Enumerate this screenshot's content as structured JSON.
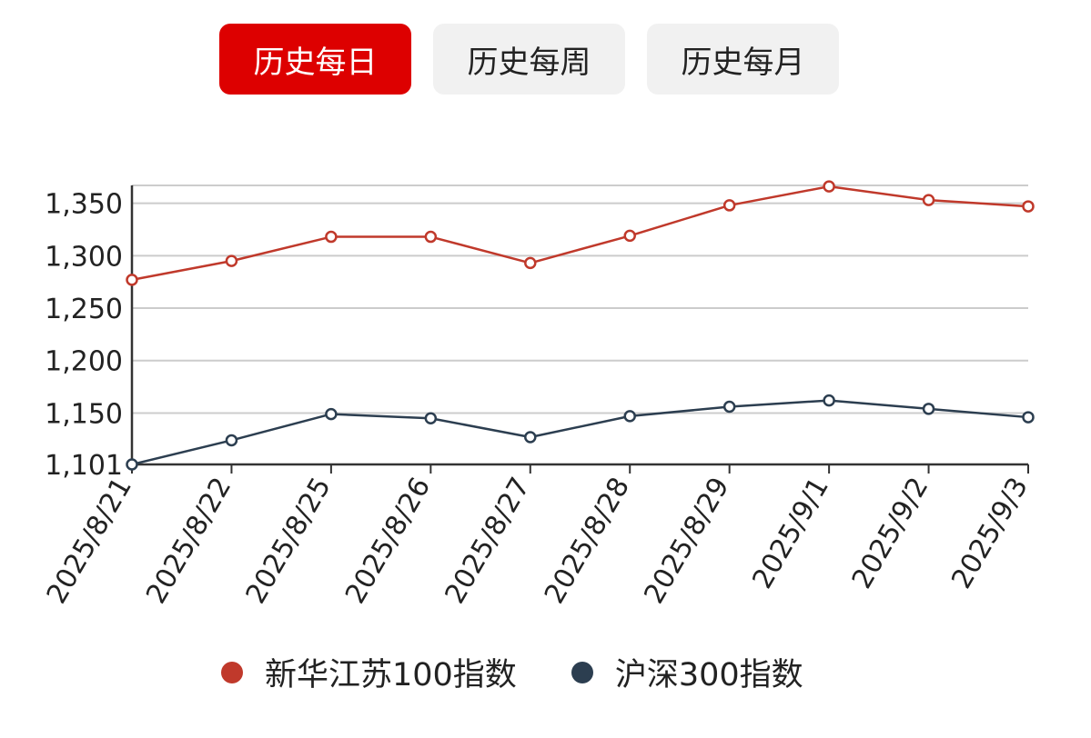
{
  "tabs": [
    {
      "label": "历史每日",
      "active": true
    },
    {
      "label": "历史每周",
      "active": false
    },
    {
      "label": "历史每月",
      "active": false
    }
  ],
  "colors": {
    "active_tab_bg": "#dd0000",
    "inactive_tab_bg": "#f1f1f1",
    "series_1": "#c0392b",
    "series_2": "#2c3e50",
    "grid": "#cccccc",
    "axis": "#333333"
  },
  "chart_data": {
    "type": "line",
    "title": "",
    "xlabel": "",
    "ylabel": "",
    "categories": [
      "2025/8/21",
      "2025/8/22",
      "2025/8/25",
      "2025/8/26",
      "2025/8/27",
      "2025/8/28",
      "2025/8/29",
      "2025/9/1",
      "2025/9/2",
      "2025/9/3"
    ],
    "y_ticks": [
      1101,
      1150,
      1200,
      1250,
      1300,
      1350
    ],
    "y_tick_labels": [
      "1,101",
      "1,150",
      "1,200",
      "1,250",
      "1,300",
      "1,350"
    ],
    "ylim": [
      1101,
      1367
    ],
    "grid": true,
    "legend_position": "bottom",
    "series": [
      {
        "name": "新华江苏100指数",
        "color": "#c0392b",
        "values": [
          1277,
          1295,
          1318,
          1318,
          1293,
          1319,
          1348,
          1366,
          1353,
          1347
        ]
      },
      {
        "name": "沪深300指数",
        "color": "#2c3e50",
        "values": [
          1101,
          1124,
          1149,
          1145,
          1127,
          1147,
          1156,
          1162,
          1154,
          1146
        ]
      }
    ]
  }
}
